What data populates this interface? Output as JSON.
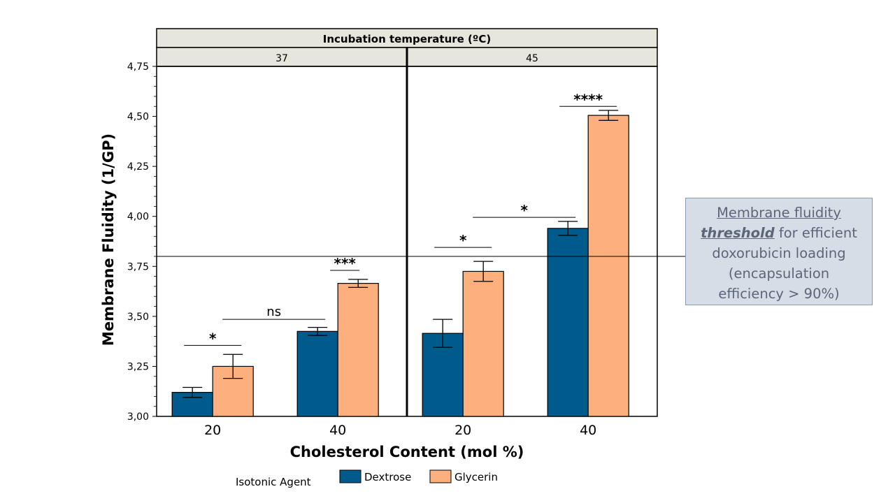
{
  "chart_data": {
    "type": "bar",
    "facet_title": "Incubation temperature (ºC)",
    "facets": [
      {
        "label": "37",
        "categories": [
          "20",
          "40"
        ],
        "series": [
          {
            "name": "Dextrose",
            "values": [
              3.12,
              3.425
            ],
            "errors": [
              0.025,
              0.02
            ]
          },
          {
            "name": "Glycerin",
            "values": [
              3.25,
              3.665
            ],
            "errors": [
              0.06,
              0.02
            ]
          }
        ],
        "annotations": [
          {
            "text": "*",
            "between": "20 Dextrose–Glycerin",
            "y": 3.355
          },
          {
            "text": "ns",
            "between": "20 Glycerin–40 Dextrose",
            "y": 3.485
          },
          {
            "text": "***",
            "between": "40 Dextrose–Glycerin",
            "y": 3.73
          }
        ]
      },
      {
        "label": "45",
        "categories": [
          "20",
          "40"
        ],
        "series": [
          {
            "name": "Dextrose",
            "values": [
              3.415,
              3.94
            ],
            "errors": [
              0.07,
              0.035
            ]
          },
          {
            "name": "Glycerin",
            "values": [
              3.725,
              4.505
            ],
            "errors": [
              0.05,
              0.025
            ]
          }
        ],
        "annotations": [
          {
            "text": "*",
            "between": "20 Dextrose–Glycerin",
            "y": 3.845
          },
          {
            "text": "*",
            "between": "20 Glycerin–40 Dextrose",
            "y": 3.995
          },
          {
            "text": "****",
            "between": "40 Dextrose–Glycerin",
            "y": 4.55
          }
        ]
      }
    ],
    "xlabel": "Cholesterol Content (mol %)",
    "ylabel": "Membrane Fluidity (1/GP)",
    "ylim": [
      3.0,
      4.75
    ],
    "yticks": [
      "3,00",
      "3,25",
      "3,50",
      "3,75",
      "4,00",
      "4,25",
      "4,50",
      "4,75"
    ],
    "threshold": 3.8,
    "legend": {
      "title": "Isotonic Agent",
      "position": "bottom"
    },
    "colors": {
      "Dextrose": "#005b8d",
      "Glycerin": "#fdb07e"
    },
    "grid": false
  },
  "note": {
    "line1": "Membrane fluidity",
    "threshold_word": "threshold",
    "line2_rest": " for efficient",
    "line3": "doxorubicin loading",
    "line4": "(encapsulation",
    "line5": "efficiency > 90%)"
  }
}
